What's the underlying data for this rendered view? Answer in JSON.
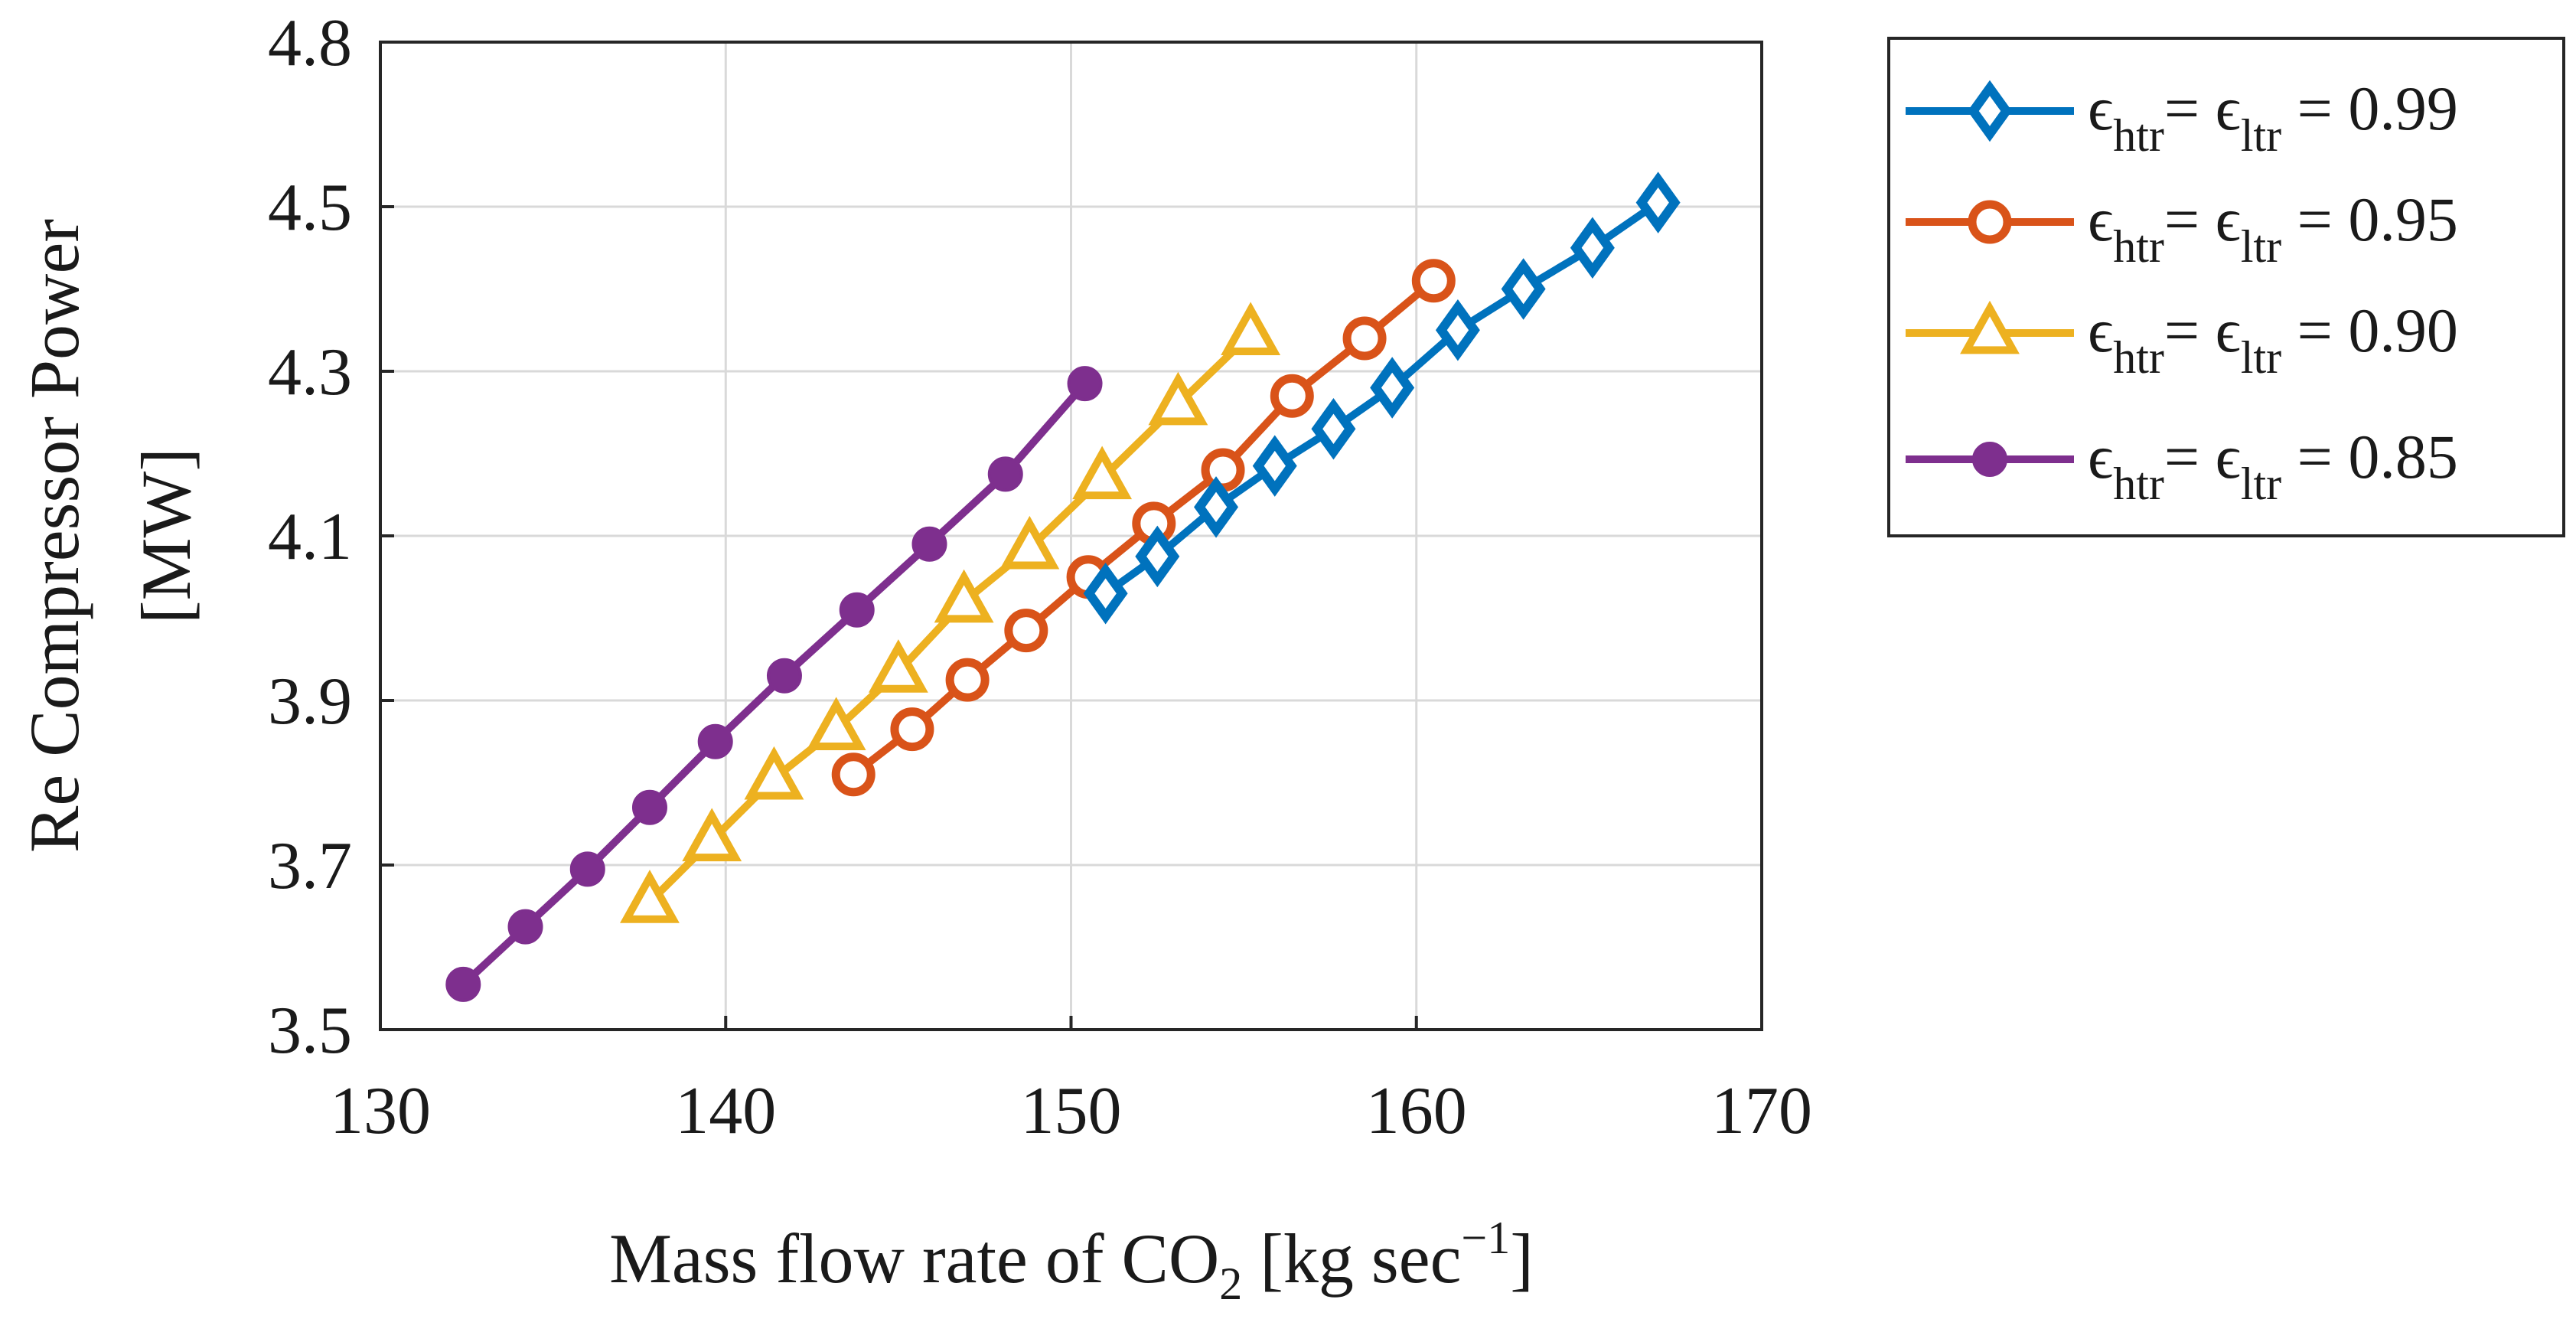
{
  "chart_data": {
    "type": "line",
    "title": "",
    "xlabel": {
      "main": "Mass flow rate of CO",
      "sub": "2",
      "unit_open": "  [kg sec",
      "sup": "−1",
      "unit_close": "]"
    },
    "ylabel": {
      "line1": "Re Compressor  Power",
      "line2": "[MW]"
    },
    "xlim": [
      130,
      170
    ],
    "ylim": [
      3.5,
      4.8
    ],
    "xticks": [
      130,
      140,
      150,
      160,
      170
    ],
    "xtick_labels": [
      "130",
      "140",
      "150",
      "160",
      "170"
    ],
    "yticks": [
      3.5,
      3.7,
      3.9,
      4.1,
      4.3,
      4.5,
      4.8
    ],
    "ytick_labels": [
      "3.5",
      "3.7",
      "3.9",
      "4.1",
      "4.3",
      "4.5",
      "4.8"
    ],
    "grid": true,
    "legend_position": "outside-top-right",
    "series": [
      {
        "name": "ε_htr = ε_ltr = 0.99",
        "legend": {
          "eps": "ϵ",
          "sub1": "htr",
          "mid": "= ",
          "eps2": "ϵ",
          "sub2": "ltr",
          "tail": " = 0.99"
        },
        "color": "#0072BD",
        "marker": "diamond",
        "x": [
          151.0,
          152.5,
          154.2,
          155.9,
          157.6,
          159.3,
          161.2,
          163.1,
          165.1,
          167.0
        ],
        "y": [
          4.03,
          4.075,
          4.135,
          4.185,
          4.23,
          4.28,
          4.35,
          4.4,
          4.45,
          4.505
        ]
      },
      {
        "name": "ε_htr = ε_ltr = 0.95",
        "legend": {
          "eps": "ϵ",
          "sub1": "htr",
          "mid": "= ",
          "eps2": "ϵ",
          "sub2": "ltr",
          "tail": " = 0.95"
        },
        "color": "#D95319",
        "marker": "circle-open",
        "x": [
          143.7,
          145.4,
          147.0,
          148.7,
          150.5,
          152.4,
          154.4,
          156.4,
          158.5,
          160.5
        ],
        "y": [
          3.81,
          3.865,
          3.925,
          3.985,
          4.05,
          4.115,
          4.18,
          4.27,
          4.34,
          4.41
        ]
      },
      {
        "name": "ε_htr = ε_ltr = 0.90",
        "legend": {
          "eps": "ϵ",
          "sub1": "htr",
          "mid": "= ",
          "eps2": "ϵ",
          "sub2": "ltr",
          "tail": " = 0.90"
        },
        "color": "#EDB120",
        "marker": "triangle-open",
        "x": [
          137.8,
          139.6,
          141.4,
          143.2,
          145.0,
          146.9,
          148.8,
          150.9,
          153.1,
          155.2
        ],
        "y": [
          3.655,
          3.73,
          3.805,
          3.865,
          3.935,
          4.02,
          4.085,
          4.17,
          4.26,
          4.345
        ]
      },
      {
        "name": "ε_htr = ε_ltr = 0.85",
        "legend": {
          "eps": "ϵ",
          "sub1": "htr",
          "mid": "= ",
          "eps2": "ϵ",
          "sub2": "ltr",
          "tail": " = 0.85"
        },
        "color": "#7E2F8E",
        "marker": "circle-filled",
        "x": [
          132.4,
          134.2,
          136.0,
          137.8,
          139.7,
          141.7,
          143.8,
          145.9,
          148.1,
          150.4
        ],
        "y": [
          3.555,
          3.625,
          3.695,
          3.77,
          3.85,
          3.93,
          4.01,
          4.09,
          4.175,
          4.285
        ]
      }
    ]
  }
}
